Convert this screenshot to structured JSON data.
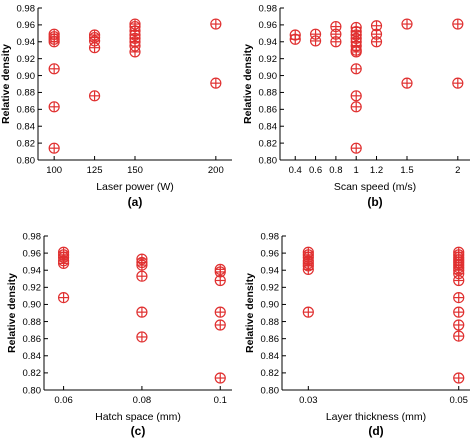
{
  "chart_data": [
    {
      "type": "scatter",
      "panel_label": "(a)",
      "xlabel": "Laser power (W)",
      "ylabel": "Relative density",
      "xticks": [
        100,
        125,
        150,
        200
      ],
      "yticks": [
        0.8,
        0.82,
        0.84,
        0.86,
        0.88,
        0.9,
        0.92,
        0.94,
        0.96,
        0.98
      ],
      "xlim": [
        90,
        210
      ],
      "ylim": [
        0.8,
        0.98
      ],
      "marker_color": "#e03030",
      "points": [
        [
          100,
          0.949
        ],
        [
          100,
          0.946
        ],
        [
          100,
          0.943
        ],
        [
          100,
          0.94
        ],
        [
          100,
          0.908
        ],
        [
          100,
          0.863
        ],
        [
          100,
          0.814
        ],
        [
          125,
          0.948
        ],
        [
          125,
          0.945
        ],
        [
          125,
          0.941
        ],
        [
          125,
          0.933
        ],
        [
          125,
          0.876
        ],
        [
          150,
          0.961
        ],
        [
          150,
          0.958
        ],
        [
          150,
          0.953
        ],
        [
          150,
          0.948
        ],
        [
          150,
          0.944
        ],
        [
          150,
          0.94
        ],
        [
          150,
          0.935
        ],
        [
          150,
          0.928
        ],
        [
          200,
          0.961
        ],
        [
          200,
          0.891
        ]
      ]
    },
    {
      "type": "scatter",
      "panel_label": "(b)",
      "xlabel": "Scan speed (m/s)",
      "ylabel": "Relative density",
      "xticks": [
        0.4,
        0.6,
        0.8,
        1,
        1.2,
        1.5,
        2
      ],
      "yticks": [
        0.8,
        0.82,
        0.84,
        0.86,
        0.88,
        0.9,
        0.92,
        0.94,
        0.96,
        0.98
      ],
      "xlim": [
        0.25,
        2.12
      ],
      "ylim": [
        0.8,
        0.98
      ],
      "marker_color": "#e03030",
      "points": [
        [
          0.4,
          0.948
        ],
        [
          0.4,
          0.943
        ],
        [
          0.6,
          0.949
        ],
        [
          0.6,
          0.941
        ],
        [
          0.8,
          0.958
        ],
        [
          0.8,
          0.949
        ],
        [
          0.8,
          0.94
        ],
        [
          1,
          0.957
        ],
        [
          1,
          0.952
        ],
        [
          1,
          0.948
        ],
        [
          1,
          0.944
        ],
        [
          1,
          0.94
        ],
        [
          1,
          0.935
        ],
        [
          1,
          0.93
        ],
        [
          1,
          0.928
        ],
        [
          1,
          0.908
        ],
        [
          1,
          0.876
        ],
        [
          1,
          0.863
        ],
        [
          1,
          0.814
        ],
        [
          1.2,
          0.959
        ],
        [
          1.2,
          0.949
        ],
        [
          1.2,
          0.94
        ],
        [
          1.5,
          0.961
        ],
        [
          1.5,
          0.891
        ],
        [
          2,
          0.961
        ],
        [
          2,
          0.891
        ]
      ]
    },
    {
      "type": "scatter",
      "panel_label": "(c)",
      "xlabel": "Hatch space (mm)",
      "ylabel": "Relative density",
      "xticks": [
        "0.06",
        "0.08",
        "0.1"
      ],
      "xtick_values": [
        0.06,
        0.08,
        0.1
      ],
      "yticks": [
        0.8,
        0.82,
        0.84,
        0.86,
        0.88,
        0.9,
        0.92,
        0.94,
        0.96,
        0.98
      ],
      "xlim": [
        0.055,
        0.103
      ],
      "ylim": [
        0.8,
        0.98
      ],
      "marker_color": "#e03030",
      "points": [
        [
          0.06,
          0.961
        ],
        [
          0.06,
          0.958
        ],
        [
          0.06,
          0.955
        ],
        [
          0.06,
          0.951
        ],
        [
          0.06,
          0.948
        ],
        [
          0.06,
          0.908
        ],
        [
          0.08,
          0.953
        ],
        [
          0.08,
          0.949
        ],
        [
          0.08,
          0.946
        ],
        [
          0.08,
          0.933
        ],
        [
          0.08,
          0.891
        ],
        [
          0.08,
          0.862
        ],
        [
          0.1,
          0.941
        ],
        [
          0.1,
          0.938
        ],
        [
          0.1,
          0.928
        ],
        [
          0.1,
          0.891
        ],
        [
          0.1,
          0.876
        ],
        [
          0.1,
          0.814
        ]
      ]
    },
    {
      "type": "scatter",
      "panel_label": "(d)",
      "xlabel": "Layer thickness (mm)",
      "ylabel": "Relative density",
      "xticks": [
        "0.03",
        "0.05"
      ],
      "xtick_values": [
        0.03,
        0.05
      ],
      "yticks": [
        0.8,
        0.82,
        0.84,
        0.86,
        0.88,
        0.9,
        0.92,
        0.94,
        0.96,
        0.98
      ],
      "xlim": [
        0.0265,
        0.0515
      ],
      "ylim": [
        0.8,
        0.98
      ],
      "marker_color": "#e03030",
      "points": [
        [
          0.03,
          0.961
        ],
        [
          0.03,
          0.958
        ],
        [
          0.03,
          0.955
        ],
        [
          0.03,
          0.951
        ],
        [
          0.03,
          0.948
        ],
        [
          0.03,
          0.945
        ],
        [
          0.03,
          0.941
        ],
        [
          0.03,
          0.891
        ],
        [
          0.05,
          0.961
        ],
        [
          0.05,
          0.958
        ],
        [
          0.05,
          0.955
        ],
        [
          0.05,
          0.952
        ],
        [
          0.05,
          0.949
        ],
        [
          0.05,
          0.946
        ],
        [
          0.05,
          0.943
        ],
        [
          0.05,
          0.94
        ],
        [
          0.05,
          0.936
        ],
        [
          0.05,
          0.928
        ],
        [
          0.05,
          0.908
        ],
        [
          0.05,
          0.891
        ],
        [
          0.05,
          0.876
        ],
        [
          0.05,
          0.863
        ],
        [
          0.05,
          0.814
        ]
      ]
    }
  ]
}
